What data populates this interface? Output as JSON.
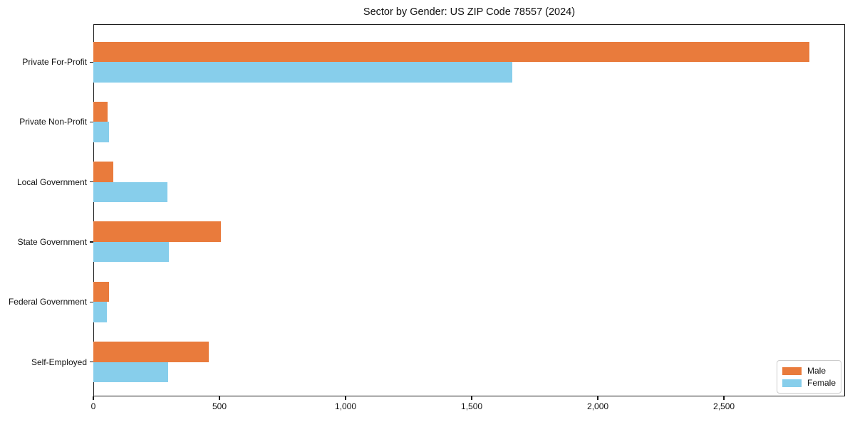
{
  "chart_data": {
    "type": "bar",
    "orientation": "horizontal",
    "title": "Sector by Gender: US ZIP Code 78557 (2024)",
    "categories": [
      "Private For-Profit",
      "Private Non-Profit",
      "Local Government",
      "State Government",
      "Federal Government",
      "Self-Employed"
    ],
    "series": [
      {
        "name": "Male",
        "color": "#E97B3C",
        "values": [
          2840,
          57,
          79,
          506,
          62,
          458
        ]
      },
      {
        "name": "Female",
        "color": "#87CEEB",
        "values": [
          1660,
          62,
          295,
          300,
          54,
          297
        ]
      }
    ],
    "xlabel": "",
    "ylabel": "",
    "x_ticks": [
      0,
      500,
      1000,
      1500,
      2000,
      2500
    ],
    "x_tick_labels": [
      "0",
      "500",
      "1,000",
      "1,500",
      "2,000",
      "2,500"
    ],
    "xlim": [
      0,
      2980
    ],
    "grid": false,
    "legend_position": "lower-right",
    "axis_color": "#1a1a1a",
    "background_color": "#ffffff"
  }
}
